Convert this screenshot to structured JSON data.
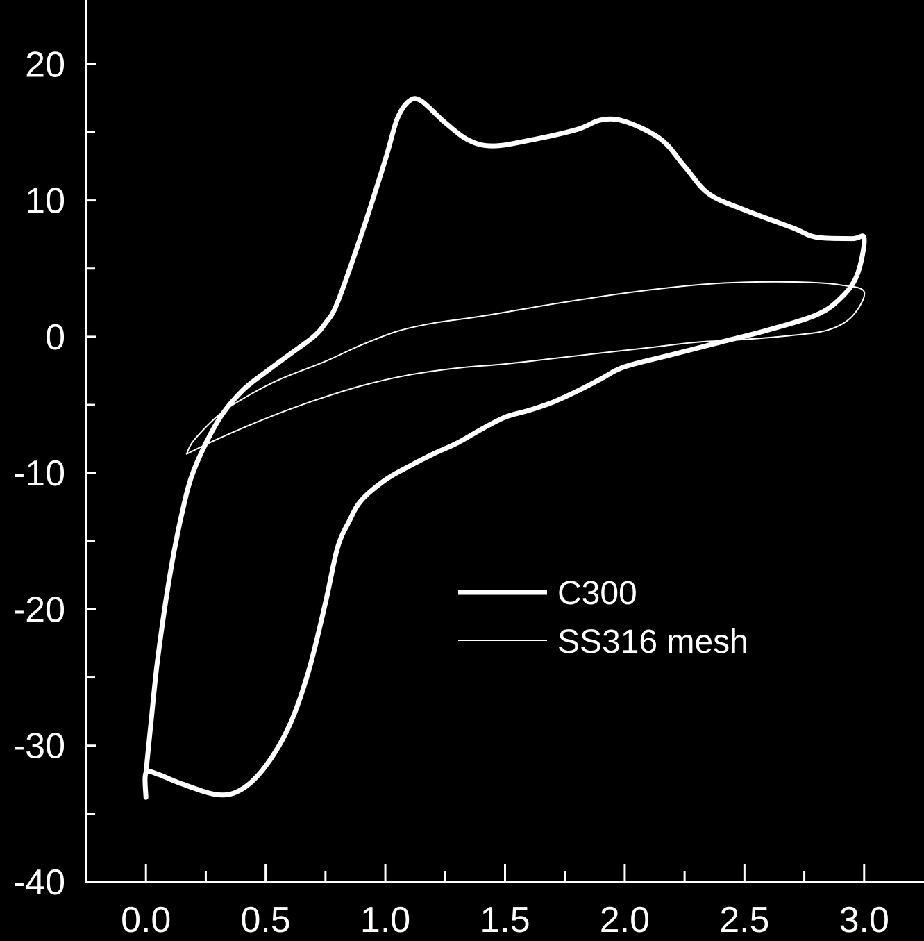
{
  "chart_data": {
    "type": "line",
    "title": "",
    "xlabel": "",
    "ylabel": "",
    "xlim": [
      -0.25,
      3.25
    ],
    "ylim": [
      -40,
      24.5
    ],
    "x_ticks": [
      0.0,
      0.5,
      1.0,
      1.5,
      2.0,
      2.5,
      3.0
    ],
    "x_tick_labels": [
      "0.0",
      "0.5",
      "1.0",
      "1.5",
      "2.0",
      "2.5",
      "3.0"
    ],
    "y_ticks": [
      -40,
      -30,
      -20,
      -10,
      0,
      10,
      20
    ],
    "y_tick_labels": [
      "-40",
      "-30",
      "-20",
      "-10",
      "0",
      "10",
      "20"
    ],
    "grid": false,
    "legend_position": "lower-right",
    "colors": {
      "background": "#000000",
      "foreground": "#ffffff"
    },
    "series": [
      {
        "name": "C300",
        "style": "thick",
        "points": [
          [
            0.0,
            -33.8
          ],
          [
            0.0,
            -32.0
          ],
          [
            0.05,
            -32.1
          ],
          [
            0.15,
            -32.8
          ],
          [
            0.3,
            -33.6
          ],
          [
            0.4,
            -33.2
          ],
          [
            0.5,
            -31.5
          ],
          [
            0.6,
            -28.5
          ],
          [
            0.68,
            -24.5
          ],
          [
            0.75,
            -19.5
          ],
          [
            0.8,
            -15.5
          ],
          [
            0.85,
            -13.5
          ],
          [
            0.9,
            -12.0
          ],
          [
            1.0,
            -10.5
          ],
          [
            1.1,
            -9.5
          ],
          [
            1.2,
            -8.6
          ],
          [
            1.3,
            -7.8
          ],
          [
            1.4,
            -6.8
          ],
          [
            1.5,
            -5.9
          ],
          [
            1.6,
            -5.4
          ],
          [
            1.7,
            -4.8
          ],
          [
            1.8,
            -4.0
          ],
          [
            1.9,
            -3.1
          ],
          [
            2.0,
            -2.2
          ],
          [
            2.2,
            -1.3
          ],
          [
            2.4,
            -0.4
          ],
          [
            2.6,
            0.5
          ],
          [
            2.8,
            1.6
          ],
          [
            2.9,
            2.8
          ],
          [
            2.97,
            4.5
          ],
          [
            3.0,
            7.2
          ],
          [
            2.95,
            7.2
          ],
          [
            2.8,
            7.3
          ],
          [
            2.7,
            8.0
          ],
          [
            2.5,
            9.3
          ],
          [
            2.35,
            10.5
          ],
          [
            2.25,
            12.5
          ],
          [
            2.15,
            14.5
          ],
          [
            2.0,
            15.8
          ],
          [
            1.9,
            15.9
          ],
          [
            1.8,
            15.2
          ],
          [
            1.6,
            14.4
          ],
          [
            1.45,
            14.0
          ],
          [
            1.35,
            14.4
          ],
          [
            1.25,
            15.7
          ],
          [
            1.15,
            17.3
          ],
          [
            1.1,
            17.3
          ],
          [
            1.05,
            16.0
          ],
          [
            1.0,
            13.0
          ],
          [
            0.9,
            7.5
          ],
          [
            0.8,
            2.5
          ],
          [
            0.75,
            1.0
          ],
          [
            0.7,
            0.0
          ],
          [
            0.6,
            -1.3
          ],
          [
            0.5,
            -2.6
          ],
          [
            0.4,
            -4.0
          ],
          [
            0.3,
            -6.2
          ],
          [
            0.2,
            -9.8
          ],
          [
            0.15,
            -13.0
          ],
          [
            0.1,
            -17.5
          ],
          [
            0.05,
            -23.5
          ],
          [
            0.02,
            -28.5
          ],
          [
            0.0,
            -32.0
          ]
        ]
      },
      {
        "name": "SS316 mesh",
        "style": "thin",
        "points": [
          [
            0.17,
            -8.6
          ],
          [
            0.3,
            -7.5
          ],
          [
            0.5,
            -6.0
          ],
          [
            0.7,
            -4.7
          ],
          [
            0.9,
            -3.6
          ],
          [
            1.1,
            -2.8
          ],
          [
            1.3,
            -2.3
          ],
          [
            1.5,
            -2.0
          ],
          [
            1.7,
            -1.6
          ],
          [
            1.9,
            -1.2
          ],
          [
            2.1,
            -0.8
          ],
          [
            2.3,
            -0.4
          ],
          [
            2.5,
            -0.2
          ],
          [
            2.7,
            0.1
          ],
          [
            2.85,
            0.5
          ],
          [
            2.95,
            1.5
          ],
          [
            3.0,
            3.3
          ],
          [
            2.9,
            3.8
          ],
          [
            2.75,
            4.0
          ],
          [
            2.5,
            4.0
          ],
          [
            2.3,
            3.8
          ],
          [
            2.0,
            3.2
          ],
          [
            1.7,
            2.4
          ],
          [
            1.4,
            1.5
          ],
          [
            1.2,
            1.0
          ],
          [
            1.05,
            0.4
          ],
          [
            0.9,
            -0.6
          ],
          [
            0.75,
            -1.8
          ],
          [
            0.55,
            -3.2
          ],
          [
            0.4,
            -4.6
          ],
          [
            0.3,
            -5.8
          ],
          [
            0.2,
            -7.6
          ],
          [
            0.17,
            -8.6
          ]
        ]
      }
    ]
  }
}
